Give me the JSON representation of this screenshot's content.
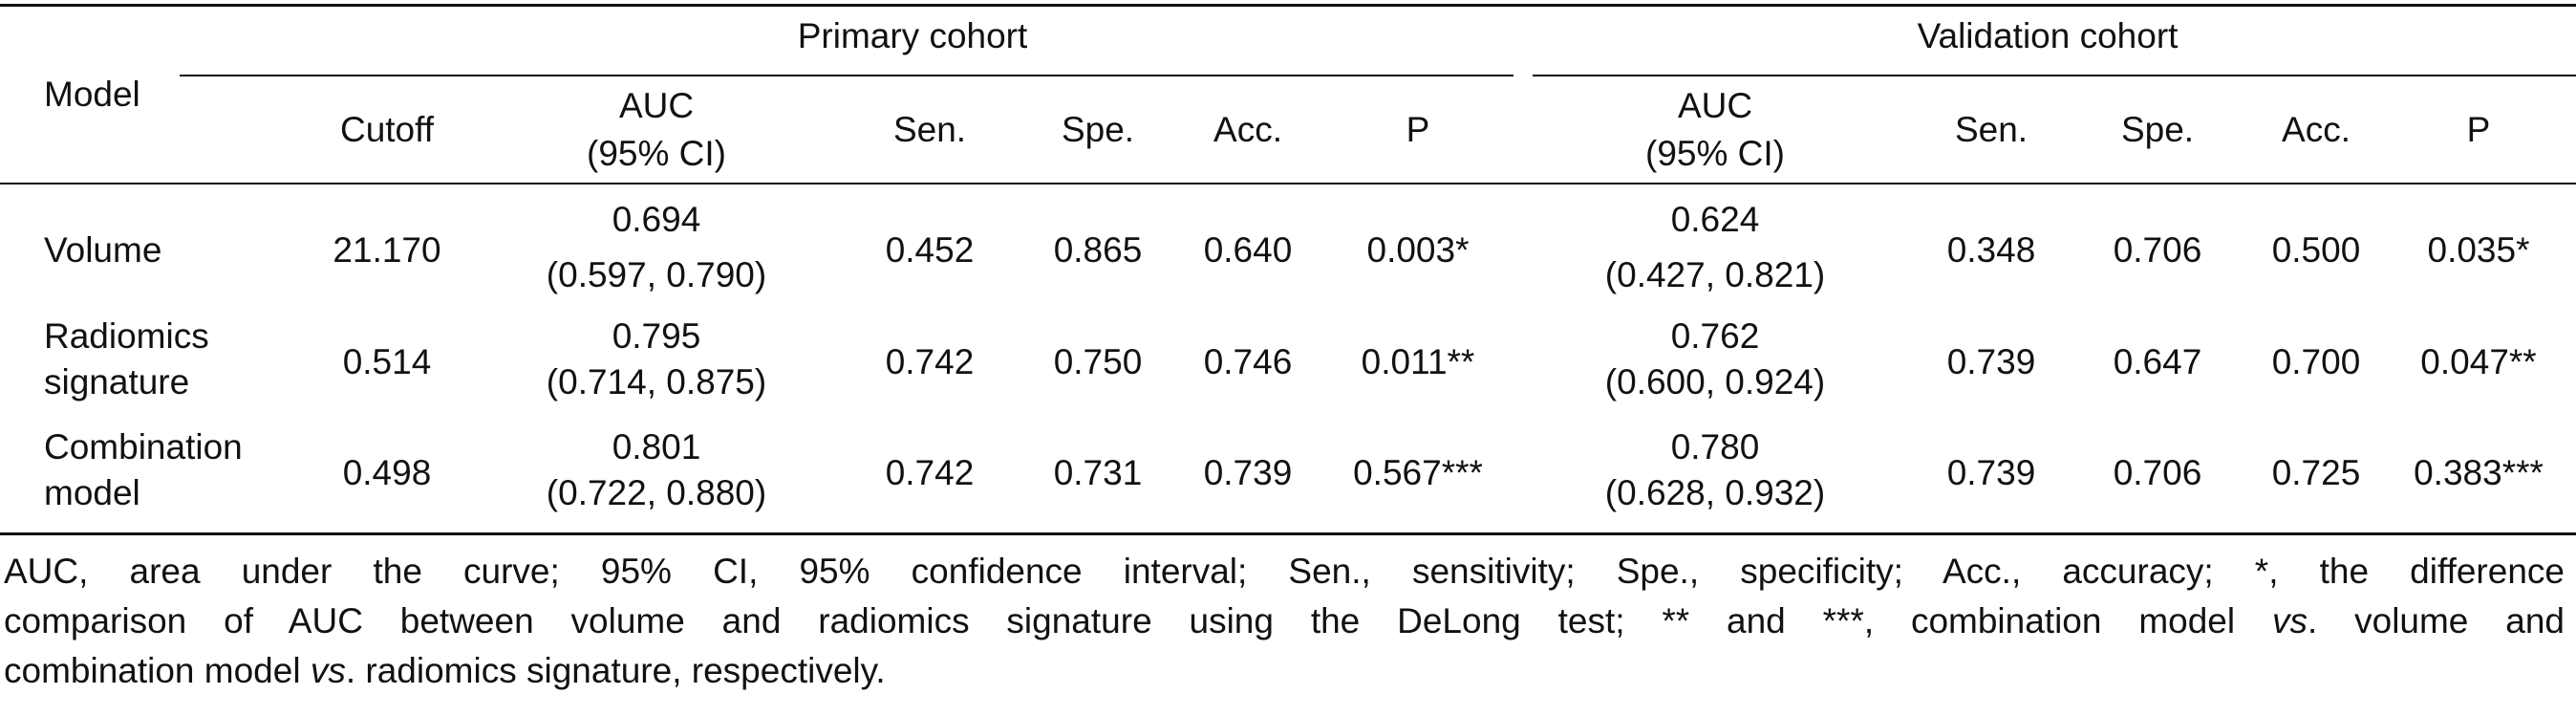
{
  "table": {
    "groups": {
      "primary": "Primary cohort",
      "validation": "Validation cohort"
    },
    "headers": {
      "model": "Model",
      "cutoff": "Cutoff",
      "auc": "AUC",
      "ci": "(95% CI)",
      "sen": "Sen.",
      "spe": "Spe.",
      "acc": "Acc.",
      "p": "P"
    },
    "rows": [
      {
        "model": [
          "Volume"
        ],
        "cutoff": "21.170",
        "primary": {
          "auc": "0.694",
          "ci": "(0.597, 0.790)",
          "sen": "0.452",
          "spe": "0.865",
          "acc": "0.640",
          "p": "0.003*"
        },
        "validation": {
          "auc": "0.624",
          "ci": "(0.427, 0.821)",
          "sen": "0.348",
          "spe": "0.706",
          "acc": "0.500",
          "p": "0.035*"
        }
      },
      {
        "model": [
          "Radiomics",
          "signature"
        ],
        "cutoff": "0.514",
        "primary": {
          "auc": "0.795",
          "ci": "(0.714, 0.875)",
          "sen": "0.742",
          "spe": "0.750",
          "acc": "0.746",
          "p": "0.011**"
        },
        "validation": {
          "auc": "0.762",
          "ci": "(0.600, 0.924)",
          "sen": "0.739",
          "spe": "0.647",
          "acc": "0.700",
          "p": "0.047**"
        }
      },
      {
        "model": [
          "Combination",
          "model"
        ],
        "cutoff": "0.498",
        "primary": {
          "auc": "0.801",
          "ci": "(0.722, 0.880)",
          "sen": "0.742",
          "spe": "0.731",
          "acc": "0.739",
          "p": "0.567***"
        },
        "validation": {
          "auc": "0.780",
          "ci": "(0.628, 0.932)",
          "sen": "0.739",
          "spe": "0.706",
          "acc": "0.725",
          "p": "0.383***"
        }
      }
    ]
  },
  "footnote": {
    "line1": "AUC, area under the curve; 95% CI, 95% confidence interval; Sen., sensitivity; Spe., specificity; Acc., accuracy; *, the difference",
    "line2a": "comparison of AUC between volume and radiomics signature using the DeLong test; ** and ***, combination model ",
    "vs": "vs",
    "line2b": ". volume and",
    "line3a": "combination model ",
    "line3b": ". radiomics signature, respectively."
  }
}
